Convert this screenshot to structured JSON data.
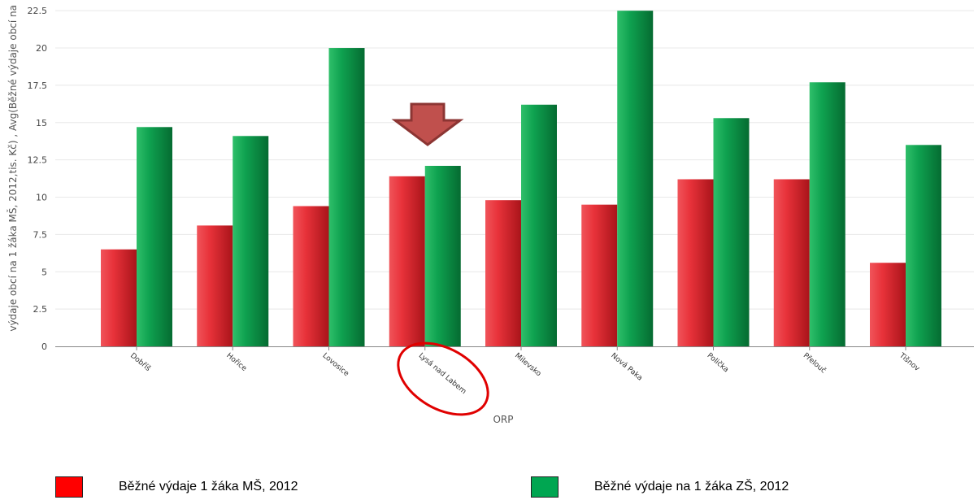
{
  "chart_data": {
    "type": "bar",
    "xlabel": "ORP",
    "ylabel": "výdaje obcí na 1 žáka MŠ, 2012,tis. Kč) , Avg(Běžné výdaje obcí na",
    "ylim": [
      0,
      23
    ],
    "yticks": [
      "0",
      "2.5",
      "5",
      "7.5",
      "10",
      "12.5",
      "15",
      "17.5",
      "20",
      "22.5"
    ],
    "categories": [
      "Dobříš",
      "Hořice",
      "Lovosice",
      "Lysá nad Labem",
      "Milevsko",
      "Nová Paka",
      "Polička",
      "Přelouč",
      "Tišnov"
    ],
    "series": [
      {
        "name": "Běžné výdaje 1 žáka MŠ, 2012",
        "color": "#e3282e",
        "values": [
          6.5,
          8.1,
          9.4,
          11.4,
          9.8,
          9.5,
          11.2,
          11.2,
          5.6
        ]
      },
      {
        "name": "Běžné výdaje na 1 žáka ZŠ, 2012",
        "color": "#0a9a48",
        "values": [
          14.7,
          14.1,
          20.0,
          12.1,
          16.2,
          22.5,
          15.3,
          17.7,
          13.5
        ]
      }
    ],
    "grid": true,
    "highlight_category": "Lysá nad Labem",
    "legend_position": "bottom"
  },
  "legend": {
    "items": [
      {
        "label": "Běžné výdaje 1 žáka MŠ, 2012",
        "color": "#ff0000"
      },
      {
        "label": "Běžné výdaje na 1 žáka ZŠ, 2012",
        "color": "#00a651"
      }
    ]
  }
}
